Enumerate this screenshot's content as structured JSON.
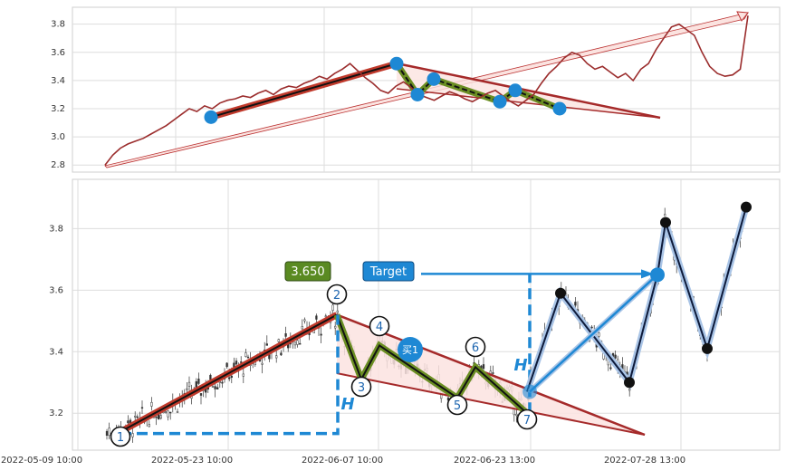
{
  "chart_data": [
    {
      "type": "line",
      "panel": "top",
      "ylim": [
        2.75,
        3.92
      ],
      "y_ticks": [
        "2.8",
        "3.0",
        "3.2",
        "3.4",
        "3.6",
        "3.8"
      ],
      "grid": true,
      "series": [
        {
          "color": "#9b2d2d",
          "values": [
            2.8,
            2.87,
            2.92,
            2.95,
            2.97,
            2.99,
            3.02,
            3.05,
            3.08,
            3.12,
            3.16,
            3.2,
            3.18,
            3.22,
            3.2,
            3.24,
            3.26,
            3.27,
            3.29,
            3.28,
            3.31,
            3.33,
            3.3,
            3.34,
            3.36,
            3.35,
            3.38,
            3.4,
            3.43,
            3.41,
            3.45,
            3.48,
            3.52,
            3.47,
            3.42,
            3.38,
            3.33,
            3.31,
            3.36,
            3.39,
            3.35,
            3.3,
            3.28,
            3.26,
            3.29,
            3.32,
            3.3,
            3.27,
            3.25,
            3.28,
            3.31,
            3.33,
            3.29,
            3.25,
            3.22,
            3.26,
            3.3,
            3.38,
            3.45,
            3.5,
            3.56,
            3.6,
            3.58,
            3.52,
            3.48,
            3.5,
            3.46,
            3.42,
            3.45,
            3.4,
            3.48,
            3.52,
            3.62,
            3.7,
            3.78,
            3.8,
            3.76,
            3.72,
            3.6,
            3.5,
            3.45,
            3.43,
            3.44,
            3.48,
            3.86
          ]
        }
      ],
      "markers": [
        3.14,
        3.52,
        3.3,
        3.41,
        3.25,
        3.33,
        3.2
      ],
      "colors": {
        "trend": "#a52a2a",
        "highlight": "#6b8e23",
        "marker": "#1e88d4"
      }
    },
    {
      "type": "candlestick",
      "panel": "bottom",
      "ylim": [
        3.08,
        3.96
      ],
      "y_ticks": [
        "3.2",
        "3.4",
        "3.6",
        "3.8"
      ],
      "x_ticks": [
        "2022-05-09 10:00",
        "2022-05-23 10:00",
        "2022-06-07 10:00",
        "2022-06-23 13:00",
        "2022-07-28 13:00"
      ],
      "grid": true,
      "path": [
        3.14,
        3.52,
        3.31,
        3.42,
        3.25,
        3.35,
        3.2
      ],
      "pivot_labels": [
        "1",
        "2",
        "3",
        "4",
        "5",
        "6",
        "7"
      ],
      "buy_label": "买1",
      "h_label": "H",
      "price_box": "3.650",
      "target_label": "Target",
      "target_price": 3.65,
      "projection": [
        3.27,
        3.59,
        3.3,
        3.65,
        3.82,
        3.41,
        3.87
      ],
      "colors": {
        "trend": "#a52a2a",
        "highlight": "#6b8e23",
        "marker": "#1e88d4",
        "projection": "#0d1a3a",
        "price_box": "#5a8a22",
        "target_box": "#1e88d4"
      }
    }
  ]
}
